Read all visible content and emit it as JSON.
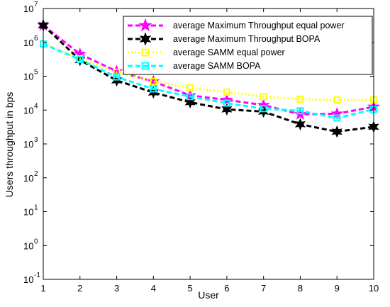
{
  "chart_data": {
    "type": "line",
    "title": "",
    "xlabel": "User",
    "ylabel": "Users throughput in bps",
    "x": [
      1,
      2,
      3,
      4,
      5,
      6,
      7,
      8,
      9,
      10
    ],
    "x_ticks": [
      "1",
      "2",
      "3",
      "4",
      "5",
      "6",
      "7",
      "8",
      "9",
      "10"
    ],
    "xlim": [
      1,
      10
    ],
    "ylim": [
      0.1,
      10000000
    ],
    "y_scale": "log",
    "y_ticks": [
      {
        "value": 0.1,
        "base": "10",
        "exp": "-1"
      },
      {
        "value": 1,
        "base": "10",
        "exp": "0"
      },
      {
        "value": 10,
        "base": "10",
        "exp": "1"
      },
      {
        "value": 100,
        "base": "10",
        "exp": "2"
      },
      {
        "value": 1000,
        "base": "10",
        "exp": "3"
      },
      {
        "value": 10000,
        "base": "10",
        "exp": "4"
      },
      {
        "value": 100000,
        "base": "10",
        "exp": "5"
      },
      {
        "value": 1000000,
        "base": "10",
        "exp": "6"
      },
      {
        "value": 10000000,
        "base": "10",
        "exp": "7"
      }
    ],
    "grid": false,
    "legend_position": "top-right",
    "series": [
      {
        "name": "average Maximum Throughput equal power",
        "color": "#ff00ff",
        "dash": "dashed",
        "marker": "star5",
        "values": [
          3200000,
          450000,
          140000,
          70000,
          27000,
          20000,
          14000,
          7500,
          7800,
          12500
        ]
      },
      {
        "name": "average Maximum Throughput BOPA",
        "color": "#000000",
        "dash": "dashed",
        "marker": "star6",
        "values": [
          3200000,
          300000,
          75000,
          33000,
          17000,
          10500,
          9000,
          3800,
          2300,
          3200
        ]
      },
      {
        "name": "average SAMM equal power",
        "color": "#ffff00",
        "dash": "dotted",
        "marker": "square",
        "values": [
          900000,
          330000,
          130000,
          70000,
          45000,
          34000,
          25000,
          21000,
          20000,
          20000
        ]
      },
      {
        "name": "average SAMM BOPA",
        "color": "#00ffff",
        "dash": "dashed",
        "marker": "square",
        "values": [
          900000,
          310000,
          95000,
          42000,
          25000,
          16000,
          11000,
          9500,
          5800,
          10500
        ]
      }
    ]
  }
}
